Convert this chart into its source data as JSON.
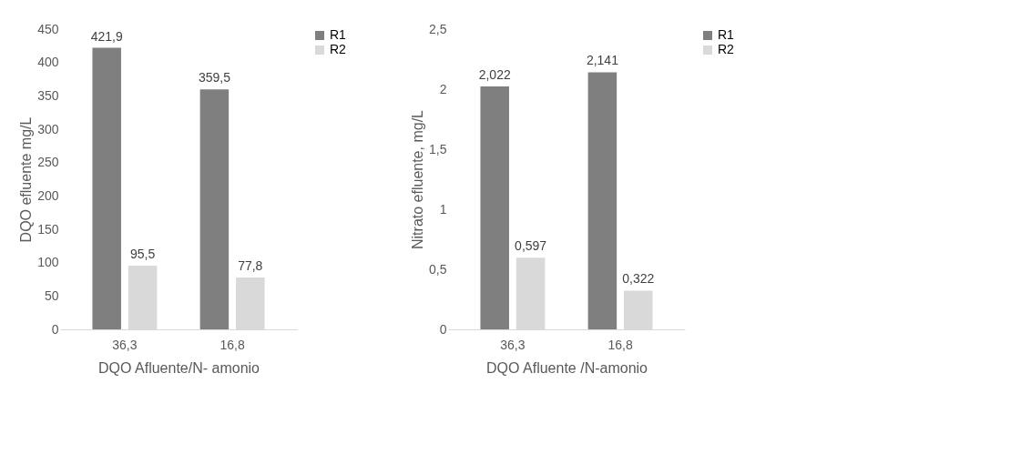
{
  "chart_data": [
    {
      "type": "bar",
      "xlabel": "DQO Afluente/N- amonio",
      "ylabel": "DQO efluente mg/L",
      "categories": [
        "36,3",
        "16,8"
      ],
      "ylim": [
        0,
        450
      ],
      "yticks": [
        0,
        50,
        100,
        150,
        200,
        250,
        300,
        350,
        400,
        450
      ],
      "legend": "right",
      "grid": false,
      "series": [
        {
          "name": "R1",
          "color": "#7f7f7f",
          "values": [
            421.9,
            359.5
          ],
          "value_labels": [
            "421,9",
            "359,5"
          ]
        },
        {
          "name": "R2",
          "color": "#d9d9d9",
          "values": [
            95.5,
            77.8
          ],
          "value_labels": [
            "95,5",
            "77,8"
          ]
        }
      ]
    },
    {
      "type": "bar",
      "xlabel": "DQO Afluente /N-amonio",
      "ylabel": "Nitrato efluente, mg/L",
      "categories": [
        "36,3",
        "16,8"
      ],
      "ylim": [
        0,
        2.5
      ],
      "yticks": [
        0,
        {
          "value": 0.5,
          "label": "0,5"
        },
        1,
        {
          "value": 1.5,
          "label": "1,5"
        },
        2,
        {
          "value": 2.5,
          "label": "2,5"
        }
      ],
      "legend": "right",
      "grid": false,
      "series": [
        {
          "name": "R1",
          "color": "#7f7f7f",
          "values": [
            2.022,
            2.141
          ],
          "value_labels": [
            "2,022",
            "2,141"
          ]
        },
        {
          "name": "R2",
          "color": "#d9d9d9",
          "values": [
            0.597,
            0.322
          ],
          "value_labels": [
            "0,597",
            "0,322"
          ]
        }
      ]
    }
  ]
}
